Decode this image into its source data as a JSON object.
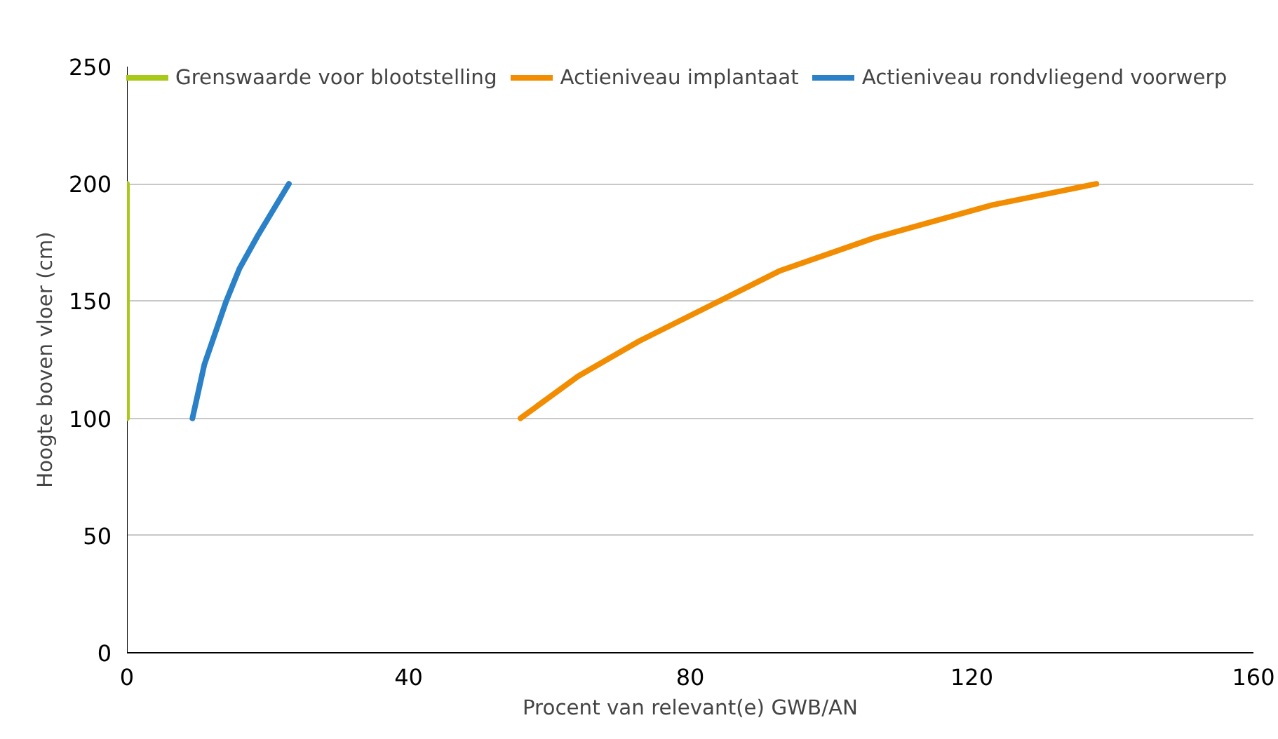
{
  "chart_data": {
    "type": "line",
    "xlabel": "Procent van relevant(e) GWB/AN",
    "ylabel": "Hoogte boven vloer (cm)",
    "xlim": [
      0,
      160
    ],
    "xticks": [
      0,
      40,
      80,
      120,
      160
    ],
    "ylim": [
      0,
      250
    ],
    "yticks": [
      0,
      50,
      100,
      150,
      200,
      250
    ],
    "grid": "y",
    "legend": "top",
    "line_style": "solid",
    "series": [
      {
        "name": "Grenswaarde voor blootstelling",
        "color": "#a8c918",
        "x": [
          0,
          0
        ],
        "values": [
          100,
          200
        ]
      },
      {
        "name": "Actieniveau implantaat",
        "color": "#f28c00",
        "x": [
          55.9,
          64.1,
          72.8,
          84.8,
          92.8,
          106.2,
          122.9,
          137.7
        ],
        "values": [
          100,
          118,
          133,
          151,
          163,
          177,
          191,
          200
        ]
      },
      {
        "name": "Actieniveau rondvliegend voorwerp",
        "color": "#2a81c8",
        "x": [
          9.3,
          11.0,
          14.1,
          16.0,
          18.6,
          23.0
        ],
        "values": [
          100,
          123,
          150,
          164,
          178,
          200
        ]
      }
    ]
  }
}
